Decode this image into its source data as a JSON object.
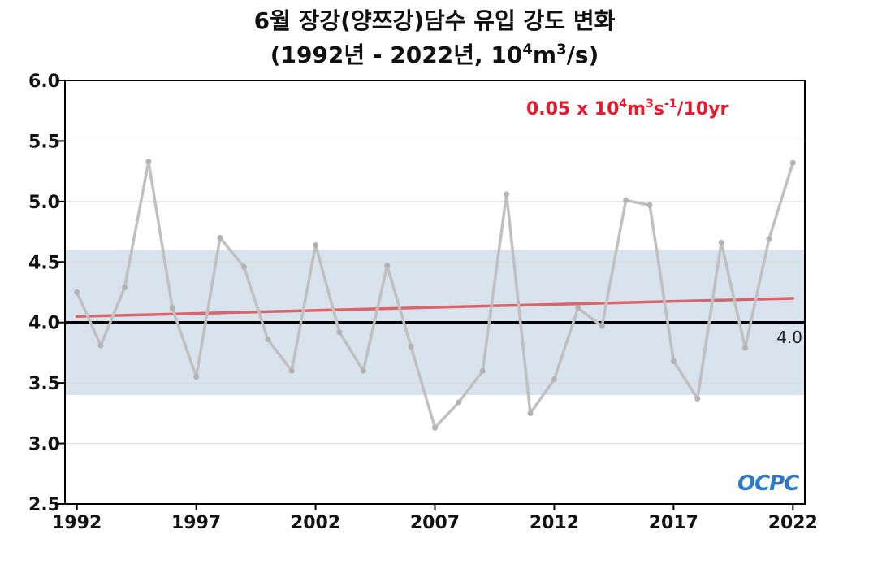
{
  "title_line1": "6월 장강(양쯔강)담수 유입 강도 변화",
  "title_line2": {
    "prefix": "(1992년 - 2022년, 10",
    "sup1": "4",
    "mid": "m",
    "sup2": "3",
    "suffix": "/s)"
  },
  "trend_label": {
    "a": "0.05 x 10",
    "sup1": "4",
    "b": "m",
    "sup2": "3",
    "c": "s",
    "sup3": "-1",
    "d": "/10yr"
  },
  "reference_label": "4.0",
  "logo_text": "OCPC",
  "chart_data": {
    "type": "line",
    "x": [
      1992,
      1993,
      1994,
      1995,
      1996,
      1997,
      1998,
      1999,
      2000,
      2001,
      2002,
      2003,
      2004,
      2005,
      2006,
      2007,
      2008,
      2009,
      2010,
      2011,
      2012,
      2013,
      2014,
      2015,
      2016,
      2017,
      2018,
      2019,
      2020,
      2021,
      2022
    ],
    "series": [
      {
        "values": [
          4.25,
          3.81,
          4.29,
          5.33,
          4.12,
          3.55,
          4.7,
          4.46,
          3.86,
          3.6,
          4.64,
          3.92,
          3.6,
          4.47,
          3.8,
          3.13,
          3.34,
          3.6,
          5.06,
          3.25,
          3.53,
          4.12,
          3.97,
          5.01,
          4.97,
          3.68,
          3.37,
          4.66,
          3.79,
          4.69,
          5.32
        ],
        "color": "#c0c0c0"
      }
    ],
    "trend": {
      "x": [
        1992,
        2022
      ],
      "y": [
        4.05,
        4.2
      ],
      "color": "#d9646a"
    },
    "reference_line": {
      "y": 4.0,
      "color": "#000000"
    },
    "band": {
      "ymin": 3.4,
      "ymax": 4.6,
      "color": "#d8e3ee"
    },
    "xticks": [
      "1992",
      "1997",
      "2002",
      "2007",
      "2012",
      "2017",
      "2022"
    ],
    "xtick_values": [
      1992,
      1997,
      2002,
      2007,
      2012,
      2017,
      2022
    ],
    "yticks": [
      "6.0",
      "5.5",
      "5.0",
      "4.5",
      "4.0",
      "3.5",
      "3.0",
      "2.5"
    ],
    "ytick_values": [
      6.0,
      5.5,
      5.0,
      4.5,
      4.0,
      3.5,
      3.0,
      2.5
    ],
    "xlim": [
      1991.5,
      2022.5
    ],
    "ylim": [
      2.5,
      6.0
    ],
    "grid": true,
    "trend_label_color": "#e8192c"
  }
}
